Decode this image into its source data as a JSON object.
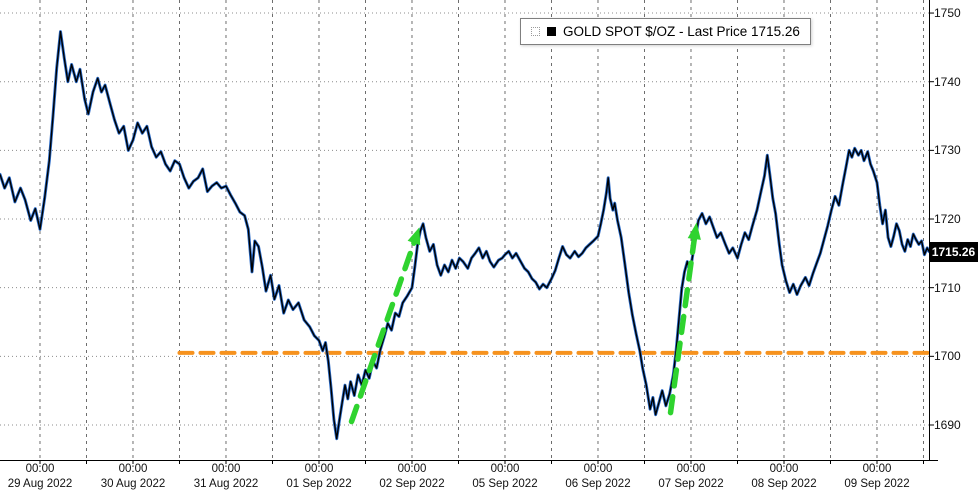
{
  "colors": {
    "background": "#ffffff",
    "grid_vertical": "#4a4a4a",
    "grid_horizontal": "#8c8c8c",
    "price_line_primary": "#000000",
    "price_line_secondary": "#2a6bc8",
    "support_line": "#f6921e",
    "arrow": "#2fd32f",
    "axis_text": "#111111",
    "badge_bg": "#000000",
    "badge_text": "#ffffff"
  },
  "legend": {
    "label": "GOLD SPOT $/OZ - Last Price 1715.26"
  },
  "badge": {
    "last_price_label": "1715.26"
  },
  "axis": {
    "y_ticks": [
      1750,
      1740,
      1730,
      1720,
      1710,
      1700,
      1690
    ],
    "x_ticks": [
      {
        "time": "00:00",
        "date": "29 Aug 2022"
      },
      {
        "time": "00:00",
        "date": "30 Aug 2022"
      },
      {
        "time": "00:00",
        "date": "31 Aug 2022"
      },
      {
        "time": "00:00",
        "date": "01 Sep 2022"
      },
      {
        "time": "00:00",
        "date": "02 Sep 2022"
      },
      {
        "time": "00:00",
        "date": "05 Sep 2022"
      },
      {
        "time": "00:00",
        "date": "06 Sep 2022"
      },
      {
        "time": "00:00",
        "date": "07 Sep 2022"
      },
      {
        "time": "00:00",
        "date": "08 Sep 2022"
      },
      {
        "time": "00:00",
        "date": "09 Sep 2022"
      }
    ]
  },
  "chart_data": {
    "type": "line",
    "title": "GOLD SPOT $/OZ",
    "last_price": 1715.26,
    "x_unit": "trading days, ticks at 00:00 of each session",
    "x_tick_days": [
      0,
      1,
      2,
      3,
      4,
      5,
      6,
      7,
      8,
      9
    ],
    "x_domain_days": [
      -0.43,
      9.57
    ],
    "y_domain": [
      1684.9,
      1751.9
    ],
    "y_gridlines": [
      1690,
      1700,
      1710,
      1720,
      1730,
      1740,
      1750
    ],
    "legend_position": "top-center",
    "grid": true,
    "series": [
      {
        "name": "GOLD SPOT $/OZ - Last Price",
        "color": "#000000",
        "points": [
          [
            -0.43,
            1726.5
          ],
          [
            -0.38,
            1724.5
          ],
          [
            -0.33,
            1726.0
          ],
          [
            -0.27,
            1722.5
          ],
          [
            -0.21,
            1724.5
          ],
          [
            -0.16,
            1722.8
          ],
          [
            -0.1,
            1719.8
          ],
          [
            -0.05,
            1721.5
          ],
          [
            0,
            1718.5
          ],
          [
            0.05,
            1723.0
          ],
          [
            0.1,
            1728.5
          ],
          [
            0.14,
            1735.0
          ],
          [
            0.18,
            1742.0
          ],
          [
            0.22,
            1747.3
          ],
          [
            0.26,
            1743.5
          ],
          [
            0.3,
            1740.0
          ],
          [
            0.34,
            1742.5
          ],
          [
            0.39,
            1740.0
          ],
          [
            0.43,
            1741.8
          ],
          [
            0.48,
            1737.5
          ],
          [
            0.52,
            1735.3
          ],
          [
            0.57,
            1738.5
          ],
          [
            0.62,
            1740.5
          ],
          [
            0.66,
            1738.5
          ],
          [
            0.7,
            1739.5
          ],
          [
            0.75,
            1737.0
          ],
          [
            0.8,
            1734.5
          ],
          [
            0.85,
            1732.5
          ],
          [
            0.9,
            1733.5
          ],
          [
            0.95,
            1730.0
          ],
          [
            1.0,
            1731.5
          ],
          [
            1.05,
            1734.0
          ],
          [
            1.1,
            1732.5
          ],
          [
            1.15,
            1733.5
          ],
          [
            1.2,
            1730.5
          ],
          [
            1.25,
            1729.0
          ],
          [
            1.3,
            1729.8
          ],
          [
            1.35,
            1728.0
          ],
          [
            1.4,
            1727.0
          ],
          [
            1.45,
            1728.5
          ],
          [
            1.5,
            1728.0
          ],
          [
            1.55,
            1726.0
          ],
          [
            1.6,
            1724.5
          ],
          [
            1.65,
            1725.5
          ],
          [
            1.7,
            1726.0
          ],
          [
            1.75,
            1727.3
          ],
          [
            1.8,
            1724.0
          ],
          [
            1.85,
            1724.8
          ],
          [
            1.9,
            1725.3
          ],
          [
            1.95,
            1724.5
          ],
          [
            2.0,
            1724.8
          ],
          [
            2.05,
            1723.5
          ],
          [
            2.1,
            1722.3
          ],
          [
            2.15,
            1721.0
          ],
          [
            2.2,
            1720.5
          ],
          [
            2.24,
            1718.5
          ],
          [
            2.28,
            1712.3
          ],
          [
            2.31,
            1716.8
          ],
          [
            2.35,
            1716.0
          ],
          [
            2.39,
            1713.0
          ],
          [
            2.43,
            1709.5
          ],
          [
            2.48,
            1711.8
          ],
          [
            2.52,
            1708.3
          ],
          [
            2.57,
            1710.3
          ],
          [
            2.62,
            1706.3
          ],
          [
            2.67,
            1708.2
          ],
          [
            2.72,
            1706.8
          ],
          [
            2.78,
            1707.8
          ],
          [
            2.84,
            1705.3
          ],
          [
            2.9,
            1704.3
          ],
          [
            2.95,
            1703.0
          ],
          [
            3.0,
            1702.3
          ],
          [
            3.04,
            1700.8
          ],
          [
            3.07,
            1702.0
          ],
          [
            3.1,
            1699.3
          ],
          [
            3.13,
            1695.3
          ],
          [
            3.16,
            1690.8
          ],
          [
            3.19,
            1688.0
          ],
          [
            3.22,
            1690.8
          ],
          [
            3.25,
            1693.3
          ],
          [
            3.28,
            1695.8
          ],
          [
            3.31,
            1693.8
          ],
          [
            3.34,
            1696.3
          ],
          [
            3.38,
            1694.3
          ],
          [
            3.42,
            1697.3
          ],
          [
            3.46,
            1695.8
          ],
          [
            3.5,
            1698.0
          ],
          [
            3.54,
            1696.8
          ],
          [
            3.58,
            1699.3
          ],
          [
            3.62,
            1698.3
          ],
          [
            3.66,
            1701.0
          ],
          [
            3.7,
            1702.8
          ],
          [
            3.74,
            1704.8
          ],
          [
            3.78,
            1703.8
          ],
          [
            3.82,
            1706.3
          ],
          [
            3.86,
            1705.8
          ],
          [
            3.9,
            1707.8
          ],
          [
            3.95,
            1708.8
          ],
          [
            4.0,
            1710.0
          ],
          [
            4.03,
            1713.0
          ],
          [
            4.06,
            1716.3
          ],
          [
            4.09,
            1718.3
          ],
          [
            4.12,
            1719.3
          ],
          [
            4.15,
            1717.3
          ],
          [
            4.19,
            1715.3
          ],
          [
            4.23,
            1716.3
          ],
          [
            4.27,
            1713.3
          ],
          [
            4.31,
            1711.8
          ],
          [
            4.35,
            1713.3
          ],
          [
            4.39,
            1712.3
          ],
          [
            4.43,
            1714.0
          ],
          [
            4.47,
            1712.8
          ],
          [
            4.51,
            1714.3
          ],
          [
            4.55,
            1713.8
          ],
          [
            4.6,
            1712.8
          ],
          [
            4.64,
            1714.3
          ],
          [
            4.68,
            1715.0
          ],
          [
            4.72,
            1715.8
          ],
          [
            4.76,
            1714.3
          ],
          [
            4.8,
            1715.3
          ],
          [
            4.84,
            1713.8
          ],
          [
            4.88,
            1713.0
          ],
          [
            4.93,
            1714.0
          ],
          [
            4.97,
            1714.3
          ],
          [
            5.0,
            1714.8
          ],
          [
            5.04,
            1715.3
          ],
          [
            5.08,
            1714.3
          ],
          [
            5.12,
            1715.0
          ],
          [
            5.16,
            1714.0
          ],
          [
            5.21,
            1712.8
          ],
          [
            5.25,
            1712.3
          ],
          [
            5.29,
            1711.3
          ],
          [
            5.33,
            1710.8
          ],
          [
            5.37,
            1709.8
          ],
          [
            5.41,
            1710.5
          ],
          [
            5.45,
            1710.0
          ],
          [
            5.5,
            1711.3
          ],
          [
            5.54,
            1712.5
          ],
          [
            5.58,
            1714.3
          ],
          [
            5.62,
            1716.0
          ],
          [
            5.66,
            1714.8
          ],
          [
            5.7,
            1714.3
          ],
          [
            5.75,
            1715.3
          ],
          [
            5.79,
            1714.5
          ],
          [
            5.83,
            1715.0
          ],
          [
            5.87,
            1715.8
          ],
          [
            5.91,
            1716.3
          ],
          [
            5.95,
            1716.8
          ],
          [
            6.0,
            1717.5
          ],
          [
            6.03,
            1719.3
          ],
          [
            6.06,
            1721.3
          ],
          [
            6.09,
            1723.8
          ],
          [
            6.11,
            1726.0
          ],
          [
            6.13,
            1723.0
          ],
          [
            6.16,
            1721.3
          ],
          [
            6.18,
            1722.3
          ],
          [
            6.21,
            1719.8
          ],
          [
            6.25,
            1717.3
          ],
          [
            6.29,
            1713.3
          ],
          [
            6.33,
            1709.3
          ],
          [
            6.37,
            1706.0
          ],
          [
            6.41,
            1703.3
          ],
          [
            6.45,
            1700.8
          ],
          [
            6.48,
            1698.3
          ],
          [
            6.52,
            1695.8
          ],
          [
            6.56,
            1692.3
          ],
          [
            6.59,
            1694.0
          ],
          [
            6.62,
            1691.5
          ],
          [
            6.66,
            1693.5
          ],
          [
            6.69,
            1695.0
          ],
          [
            6.73,
            1692.8
          ],
          [
            6.77,
            1694.5
          ],
          [
            6.81,
            1697.3
          ],
          [
            6.84,
            1700.8
          ],
          [
            6.87,
            1705.3
          ],
          [
            6.9,
            1709.8
          ],
          [
            6.93,
            1712.3
          ],
          [
            6.96,
            1713.8
          ],
          [
            6.99,
            1712.3
          ],
          [
            7.02,
            1714.8
          ],
          [
            7.05,
            1717.3
          ],
          [
            7.08,
            1719.8
          ],
          [
            7.12,
            1720.8
          ],
          [
            7.16,
            1719.3
          ],
          [
            7.2,
            1720.3
          ],
          [
            7.24,
            1718.8
          ],
          [
            7.28,
            1717.3
          ],
          [
            7.32,
            1718.0
          ],
          [
            7.37,
            1716.3
          ],
          [
            7.41,
            1715.0
          ],
          [
            7.45,
            1715.8
          ],
          [
            7.5,
            1714.3
          ],
          [
            7.54,
            1716.3
          ],
          [
            7.58,
            1718.0
          ],
          [
            7.62,
            1717.0
          ],
          [
            7.66,
            1719.0
          ],
          [
            7.71,
            1721.3
          ],
          [
            7.75,
            1723.8
          ],
          [
            7.79,
            1726.3
          ],
          [
            7.82,
            1729.3
          ],
          [
            7.85,
            1726.3
          ],
          [
            7.88,
            1723.0
          ],
          [
            7.91,
            1720.8
          ],
          [
            7.95,
            1716.3
          ],
          [
            7.98,
            1713.3
          ],
          [
            8.02,
            1711.0
          ],
          [
            8.06,
            1709.3
          ],
          [
            8.1,
            1710.5
          ],
          [
            8.14,
            1709.0
          ],
          [
            8.18,
            1710.3
          ],
          [
            8.23,
            1711.5
          ],
          [
            8.27,
            1710.3
          ],
          [
            8.31,
            1712.0
          ],
          [
            8.35,
            1713.5
          ],
          [
            8.39,
            1715.0
          ],
          [
            8.43,
            1717.0
          ],
          [
            8.47,
            1719.0
          ],
          [
            8.51,
            1721.3
          ],
          [
            8.55,
            1723.3
          ],
          [
            8.59,
            1722.0
          ],
          [
            8.63,
            1725.0
          ],
          [
            8.67,
            1727.8
          ],
          [
            8.7,
            1730.0
          ],
          [
            8.73,
            1729.0
          ],
          [
            8.76,
            1730.3
          ],
          [
            8.8,
            1729.3
          ],
          [
            8.83,
            1730.0
          ],
          [
            8.86,
            1728.5
          ],
          [
            8.9,
            1729.8
          ],
          [
            8.93,
            1728.0
          ],
          [
            8.96,
            1727.0
          ],
          [
            9.0,
            1725.3
          ],
          [
            9.03,
            1722.0
          ],
          [
            9.06,
            1719.3
          ],
          [
            9.09,
            1721.3
          ],
          [
            9.12,
            1717.3
          ],
          [
            9.15,
            1716.0
          ],
          [
            9.18,
            1717.5
          ],
          [
            9.21,
            1719.3
          ],
          [
            9.24,
            1718.3
          ],
          [
            9.27,
            1716.3
          ],
          [
            9.3,
            1715.3
          ],
          [
            9.33,
            1717.0
          ],
          [
            9.36,
            1716.0
          ],
          [
            9.39,
            1717.8
          ],
          [
            9.42,
            1717.0
          ],
          [
            9.45,
            1716.3
          ],
          [
            9.48,
            1716.8
          ],
          [
            9.51,
            1714.8
          ],
          [
            9.54,
            1715.8
          ],
          [
            9.56,
            1715.26
          ]
        ]
      }
    ],
    "annotations": {
      "support_line": {
        "type": "hline",
        "value": 1700.5,
        "from_day": 1.5,
        "to_day": 9.57,
        "color": "#f6921e",
        "style": "dashed"
      },
      "arrows": [
        {
          "type": "trend-arrow-up",
          "from": [
            3.35,
            1690.5
          ],
          "to": [
            4.08,
            1718.8
          ],
          "color": "#2fd32f",
          "style": "dashed"
        },
        {
          "type": "trend-arrow-up",
          "from": [
            6.78,
            1691.8
          ],
          "to": [
            7.06,
            1719.5
          ],
          "color": "#2fd32f",
          "style": "dashed"
        }
      ]
    }
  }
}
